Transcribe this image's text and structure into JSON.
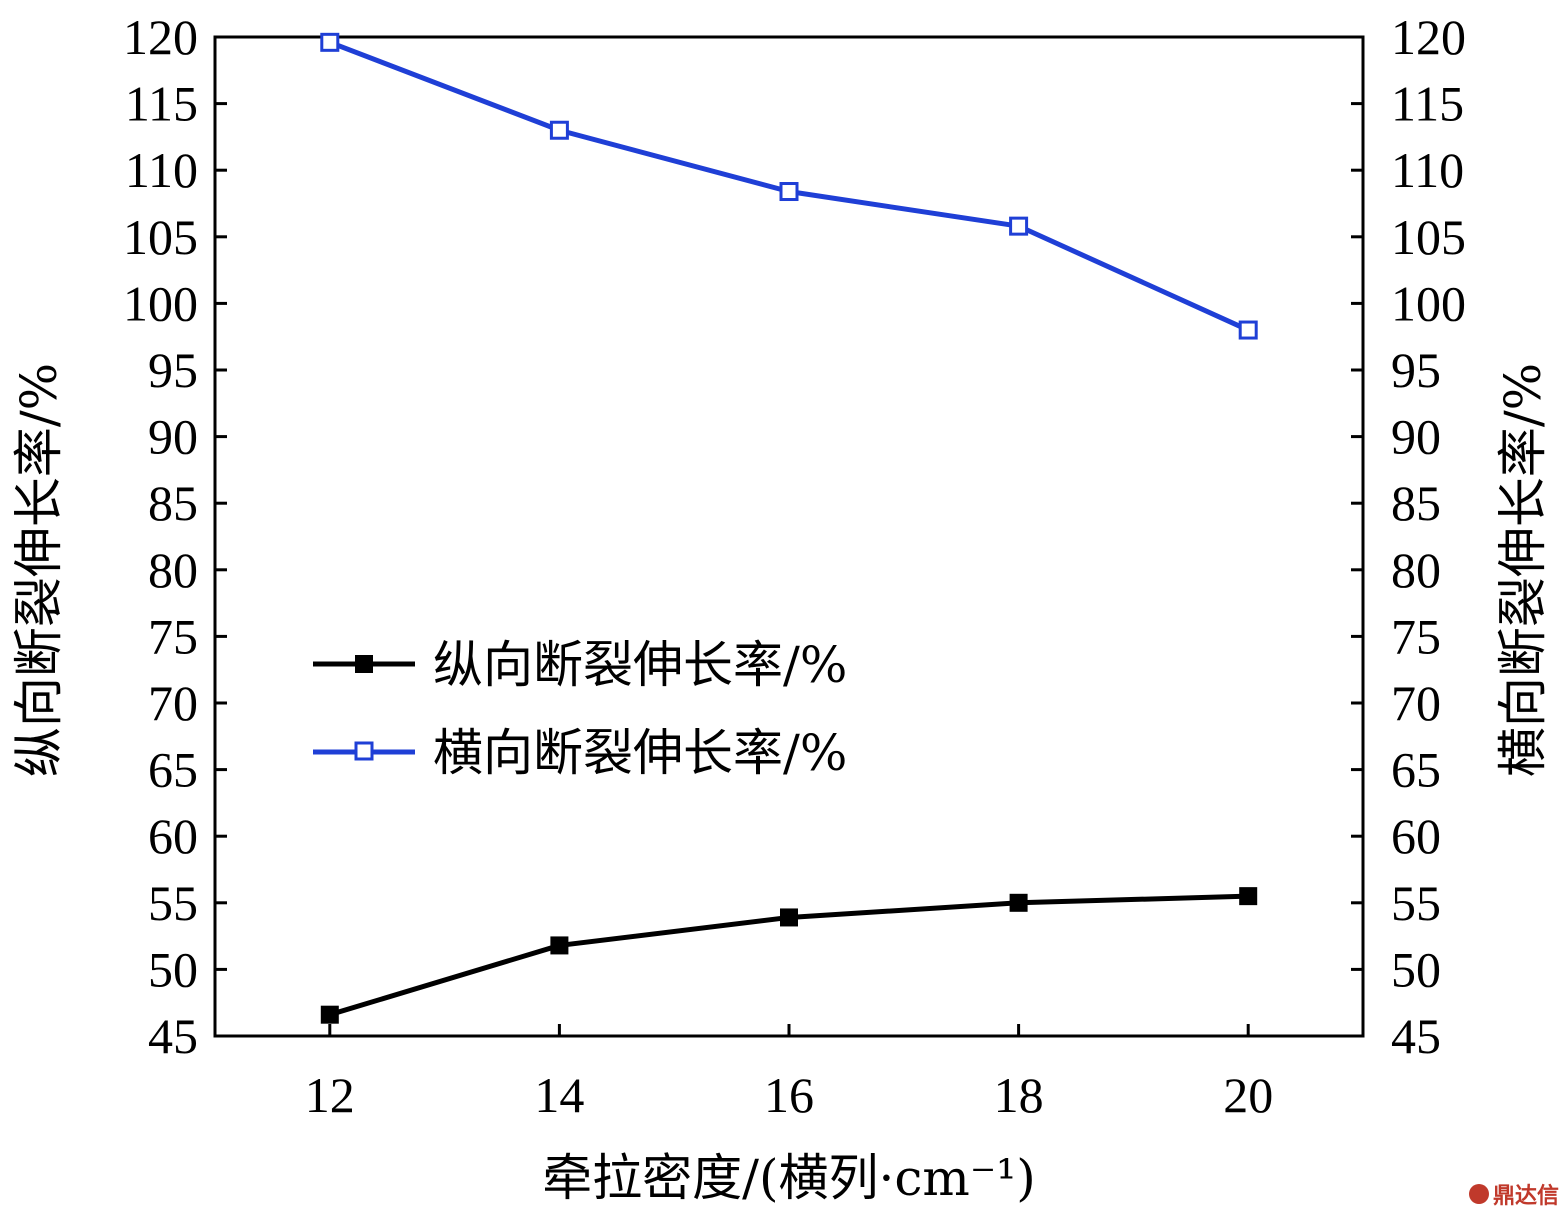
{
  "chart_data": {
    "type": "line",
    "x": [
      12,
      14,
      16,
      18,
      20
    ],
    "xlabel": "牵拉密度/(横列·cm⁻¹)",
    "ylabel_left": "纵向断裂伸长率/%",
    "ylabel_right": "横向断裂伸长率/%",
    "xlim": [
      11,
      21
    ],
    "ylim": [
      45,
      120
    ],
    "xticks": [
      "12",
      "14",
      "16",
      "18",
      "20"
    ],
    "yticks": [
      "45",
      "50",
      "55",
      "60",
      "65",
      "70",
      "75",
      "80",
      "85",
      "90",
      "95",
      "100",
      "105",
      "110",
      "115",
      "120"
    ],
    "legend_position": "center-left",
    "grid": false,
    "series": [
      {
        "name": "纵向断裂伸长率/%",
        "values": [
          46.6,
          51.8,
          53.9,
          55.0,
          55.5
        ],
        "color": "#000000",
        "marker": "filled-square",
        "axis": "left"
      },
      {
        "name": "横向断裂伸长率/%",
        "values": [
          119.6,
          113.0,
          108.4,
          105.8,
          98.0
        ],
        "color": "#1f3fd6",
        "marker": "open-square",
        "axis": "right"
      }
    ]
  },
  "watermark": {
    "text": "鼎达信",
    "color": "#c0392b"
  }
}
